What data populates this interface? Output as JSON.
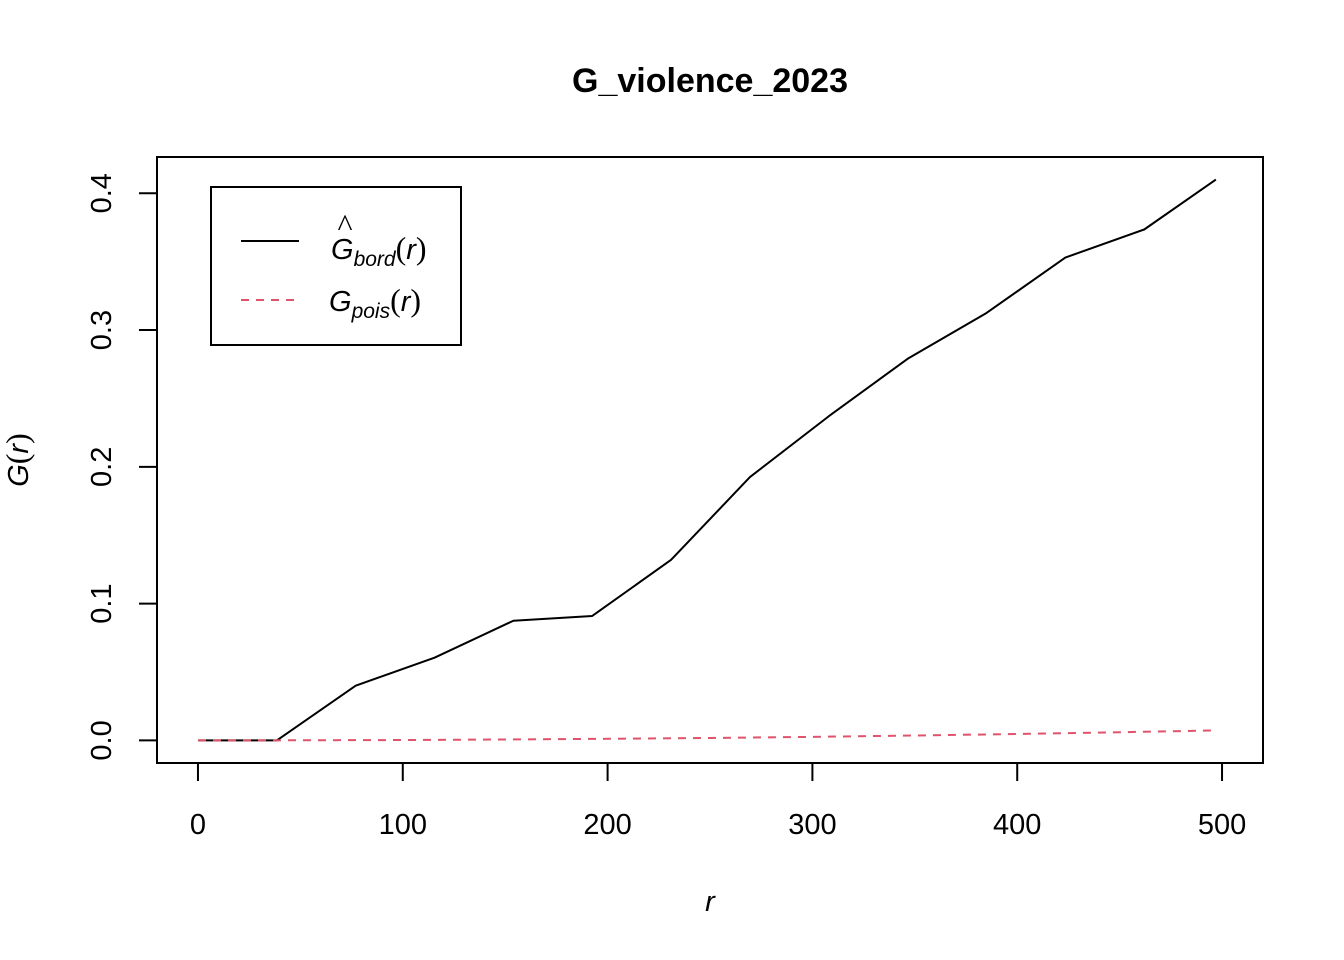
{
  "chart_data": {
    "type": "line",
    "title": "G_violence_2023",
    "xlabel": {
      "main": "r"
    },
    "ylabel": {
      "main": "G",
      "open": "(",
      "var": "r",
      "close": ")"
    },
    "xlim": [
      -20,
      520
    ],
    "ylim": [
      -0.0165,
      0.4265
    ],
    "xticks": [
      0,
      100,
      200,
      300,
      400,
      500
    ],
    "yticks": [
      0.0,
      0.1,
      0.2,
      0.3,
      0.4
    ],
    "xtick_labels": [
      "0",
      "100",
      "200",
      "300",
      "400",
      "500"
    ],
    "ytick_labels": [
      "0.0",
      "0.1",
      "0.2",
      "0.3",
      "0.4"
    ],
    "legend_position": "top-left",
    "series": [
      {
        "key": "bord",
        "legend": {
          "hat": "^",
          "main": "G",
          "sub": "bord",
          "open": "(",
          "var": "r",
          "close": ")"
        },
        "color": "#000000",
        "dash": "solid",
        "x": [
          0,
          38.5,
          77,
          115.5,
          154,
          192.5,
          231,
          269.5,
          308,
          346.5,
          385,
          423.5,
          462,
          497
        ],
        "y": [
          0,
          0,
          0.04,
          0.0605,
          0.0875,
          0.091,
          0.132,
          0.1925,
          0.237,
          0.279,
          0.3125,
          0.353,
          0.3735,
          0.41
        ]
      },
      {
        "key": "pois",
        "legend": {
          "main": "G",
          "sub": "pois",
          "open": "(",
          "var": "r",
          "close": ")"
        },
        "color": "#DF536B",
        "dash": "dashed",
        "x": [
          0,
          50,
          100,
          150,
          200,
          250,
          300,
          350,
          400,
          450,
          497
        ],
        "y": [
          0,
          0.0001,
          0.0003,
          0.0007,
          0.0012,
          0.0018,
          0.0026,
          0.0036,
          0.0047,
          0.006,
          0.0073
        ]
      }
    ]
  }
}
